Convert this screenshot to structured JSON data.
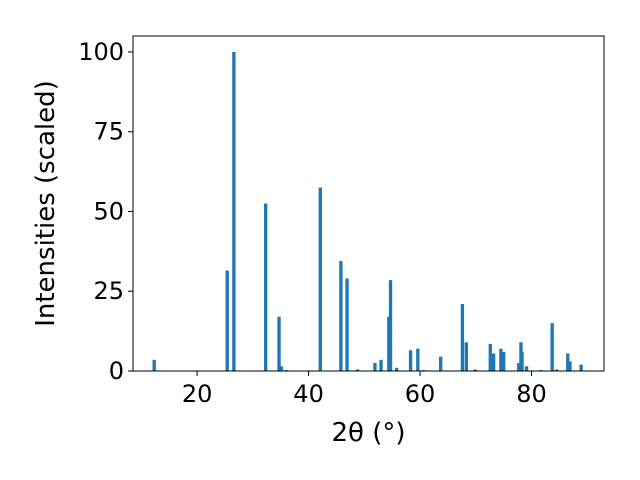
{
  "chart_data": {
    "type": "bar",
    "xlabel": "2θ (°)",
    "ylabel": "Intensities (scaled)",
    "xlim": [
      8.5,
      93
    ],
    "ylim": [
      0,
      105
    ],
    "xticks": [
      20,
      40,
      60,
      80
    ],
    "yticks": [
      0,
      25,
      50,
      75,
      100
    ],
    "bar_color": "#1f77b4",
    "bar_width": 0.6,
    "grid": false,
    "x": [
      12.3,
      25.4,
      26.6,
      32.3,
      34.7,
      35.1,
      36.0,
      42.1,
      45.8,
      46.9,
      48.8,
      51.9,
      53.0,
      54.4,
      54.7,
      55.8,
      58.3,
      59.6,
      60.6,
      63.7,
      67.6,
      68.3,
      69.9,
      72.6,
      73.2,
      74.5,
      75.0,
      77.7,
      78.1,
      78.3,
      79.1,
      81.7,
      83.7,
      84.5,
      86.5,
      86.9,
      88.9
    ],
    "values": [
      3.5,
      31.5,
      100,
      52.5,
      17,
      1.5,
      0.3,
      57.5,
      34.5,
      29,
      0.5,
      2.5,
      3.5,
      17,
      28.5,
      1,
      6.5,
      7,
      0.3,
      4.5,
      21,
      9,
      0.5,
      8.5,
      5.5,
      7,
      6,
      2.5,
      9,
      6,
      1.5,
      0.3,
      15,
      0.5,
      5.5,
      3,
      2
    ]
  }
}
